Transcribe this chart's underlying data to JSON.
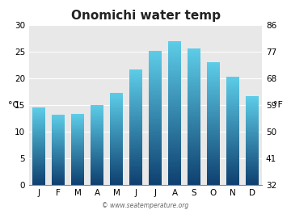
{
  "title": "Onomichi water temp",
  "months": [
    "J",
    "F",
    "M",
    "A",
    "M",
    "J",
    "J",
    "A",
    "S",
    "O",
    "N",
    "D"
  ],
  "values_c": [
    14.5,
    13.2,
    13.3,
    15.0,
    17.3,
    21.7,
    25.2,
    27.0,
    25.6,
    23.0,
    20.3,
    16.6
  ],
  "ylabel_left": "°C",
  "ylabel_right": "°F",
  "yticks_c": [
    0,
    5,
    10,
    15,
    20,
    25,
    30
  ],
  "yticks_f": [
    32,
    41,
    50,
    59,
    68,
    77,
    86
  ],
  "ylim_c": [
    0,
    30
  ],
  "bar_color_top": "#5dcde8",
  "bar_color_bottom": "#0e4070",
  "fig_bg_color": "#ffffff",
  "plot_bg_color": "#e8e8e8",
  "watermark": "© www.seatemperature.org",
  "title_fontsize": 11,
  "tick_fontsize": 7.5,
  "label_fontsize": 8
}
